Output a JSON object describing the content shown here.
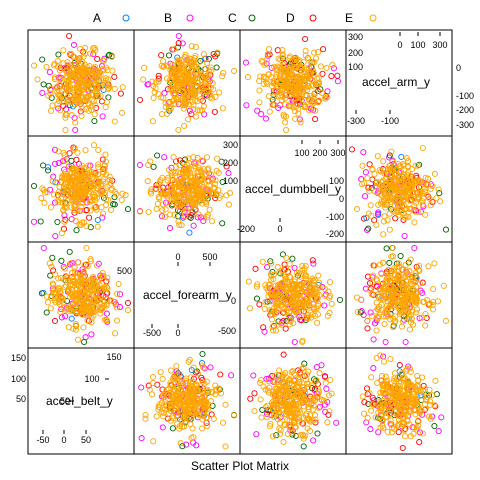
{
  "chart_data": {
    "type": "scatter",
    "title": "",
    "xlabel": "Scatter Plot Matrix",
    "legend_position": "top",
    "legend": [
      {
        "label": "A",
        "color": "#0080ff"
      },
      {
        "label": "B",
        "color": "#ff00ff"
      },
      {
        "label": "C",
        "color": "#006400"
      },
      {
        "label": "D",
        "color": "#ff0000"
      },
      {
        "label": "E",
        "color": "#ffa500"
      }
    ],
    "variables": [
      {
        "name": "accel_belt_y",
        "range": [
          -80,
          170
        ],
        "ticks_upper": [
          "50",
          "100",
          "150"
        ],
        "ticks_lower": [
          "-50",
          "0",
          "50"
        ],
        "ticks_left": [
          "150",
          "100",
          "50"
        ],
        "ticks_bottom": [
          "-50",
          "0",
          "50"
        ]
      },
      {
        "name": "accel_forearm_y",
        "range": [
          -700,
          930
        ],
        "ticks_upper": [
          "0",
          "500"
        ],
        "ticks_lower": [
          "-500",
          "0"
        ],
        "ticks_right": [
          "500",
          "0",
          "-500"
        ],
        "ticks_top": [
          "0",
          "500"
        ]
      },
      {
        "name": "accel_dumbbell_y",
        "range": [
          -250,
          330
        ],
        "ticks_upper": [
          "100",
          "200",
          "300"
        ],
        "ticks_lower": [
          "-200",
          "0"
        ],
        "ticks_left": [
          "300",
          "200",
          "100"
        ],
        "ticks_right": [
          "100",
          "0",
          "-100",
          "-200"
        ],
        "ticks_top": [
          "100",
          "200",
          "300"
        ],
        "ticks_bottom": [
          "200",
          "0"
        ]
      },
      {
        "name": "accel_arm_y",
        "range": [
          -350,
          330
        ],
        "ticks_upper": [
          "0",
          "100",
          "300"
        ],
        "ticks_lower": [
          "-300",
          "-100"
        ],
        "ticks_left": [
          "300",
          "200",
          "100"
        ],
        "ticks_right": [
          "0",
          "-100",
          "-200",
          "-300"
        ],
        "ticks_top": [
          "0",
          "100",
          "200",
          "300"
        ],
        "ticks_bottom": [
          "-300",
          "-100"
        ]
      }
    ],
    "grid": false
  }
}
